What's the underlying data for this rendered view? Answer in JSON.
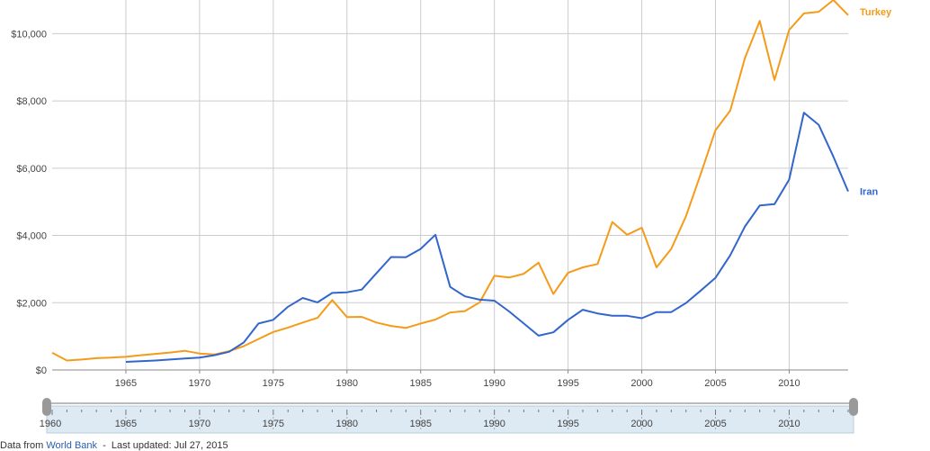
{
  "colors": {
    "iran": "#3366cc",
    "turkey": "#f49b1a",
    "grid": "#cccccc",
    "axis": "#888888",
    "slider_fill": "#dde9f3",
    "slider_handle": "#999999"
  },
  "chart_data": {
    "type": "line",
    "title": "",
    "xlabel": "",
    "ylabel": "",
    "xlim": [
      1960,
      2014
    ],
    "ylim": [
      0,
      11000
    ],
    "grid": true,
    "x_ticks": [
      1965,
      1970,
      1975,
      1980,
      1985,
      1990,
      1995,
      2000,
      2005,
      2010
    ],
    "x_tick_labels": [
      "1965",
      "1970",
      "1975",
      "1980",
      "1985",
      "1990",
      "1995",
      "2000",
      "2005",
      "2010"
    ],
    "y_ticks": [
      0,
      2000,
      4000,
      6000,
      8000,
      10000
    ],
    "y_tick_labels": [
      "$0",
      "$2,000",
      "$4,000",
      "$6,000",
      "$8,000",
      "$10,000"
    ],
    "legend_position": "right (labels at line ends)",
    "series": [
      {
        "name": "Turkey",
        "x": [
          1960,
          1961,
          1962,
          1963,
          1964,
          1965,
          1966,
          1967,
          1968,
          1969,
          1970,
          1971,
          1972,
          1973,
          1974,
          1975,
          1976,
          1977,
          1978,
          1979,
          1980,
          1981,
          1982,
          1983,
          1984,
          1985,
          1986,
          1987,
          1988,
          1989,
          1990,
          1991,
          1992,
          1993,
          1994,
          1995,
          1996,
          1997,
          1998,
          1999,
          2000,
          2001,
          2002,
          2003,
          2004,
          2005,
          2006,
          2007,
          2008,
          2009,
          2010,
          2011,
          2012,
          2013,
          2014
        ],
        "values": [
          510,
          280,
          310,
          350,
          370,
          390,
          440,
          480,
          520,
          570,
          490,
          460,
          560,
          710,
          920,
          1130,
          1260,
          1410,
          1550,
          2080,
          1570,
          1580,
          1410,
          1310,
          1250,
          1380,
          1500,
          1710,
          1750,
          2010,
          2800,
          2750,
          2860,
          3190,
          2260,
          2890,
          3050,
          3150,
          4400,
          4020,
          4230,
          3050,
          3600,
          4570,
          5830,
          7130,
          7710,
          9280,
          10380,
          8620,
          10110,
          10600,
          10650,
          11000,
          10550
        ]
      },
      {
        "name": "Iran",
        "x": [
          1965,
          1966,
          1967,
          1968,
          1969,
          1970,
          1971,
          1972,
          1973,
          1974,
          1975,
          1976,
          1977,
          1978,
          1979,
          1980,
          1981,
          1982,
          1983,
          1984,
          1985,
          1986,
          1987,
          1988,
          1989,
          1990,
          1991,
          1992,
          1993,
          1994,
          1995,
          1996,
          1997,
          1998,
          1999,
          2000,
          2001,
          2002,
          2003,
          2004,
          2005,
          2006,
          2007,
          2008,
          2009,
          2010,
          2011,
          2012,
          2013,
          2014
        ],
        "values": [
          240,
          260,
          280,
          310,
          340,
          370,
          440,
          540,
          820,
          1380,
          1490,
          1880,
          2140,
          2010,
          2290,
          2310,
          2390,
          2880,
          3360,
          3350,
          3600,
          4020,
          2470,
          2190,
          2090,
          2060,
          1740,
          1380,
          1020,
          1120,
          1490,
          1790,
          1680,
          1610,
          1610,
          1540,
          1720,
          1720,
          1990,
          2360,
          2740,
          3410,
          4270,
          4890,
          4930,
          5660,
          7650,
          7290,
          6340,
          5310
        ]
      }
    ]
  },
  "range_slider": {
    "start_label": "1960",
    "tick_labels": [
      "1965",
      "1970",
      "1975",
      "1980",
      "1985",
      "1990",
      "1995",
      "2000",
      "2005",
      "2010"
    ]
  },
  "source": {
    "prefix": "Data from ",
    "link_text": "World Bank",
    "updated": "Last updated: Jul 27, 2015"
  }
}
